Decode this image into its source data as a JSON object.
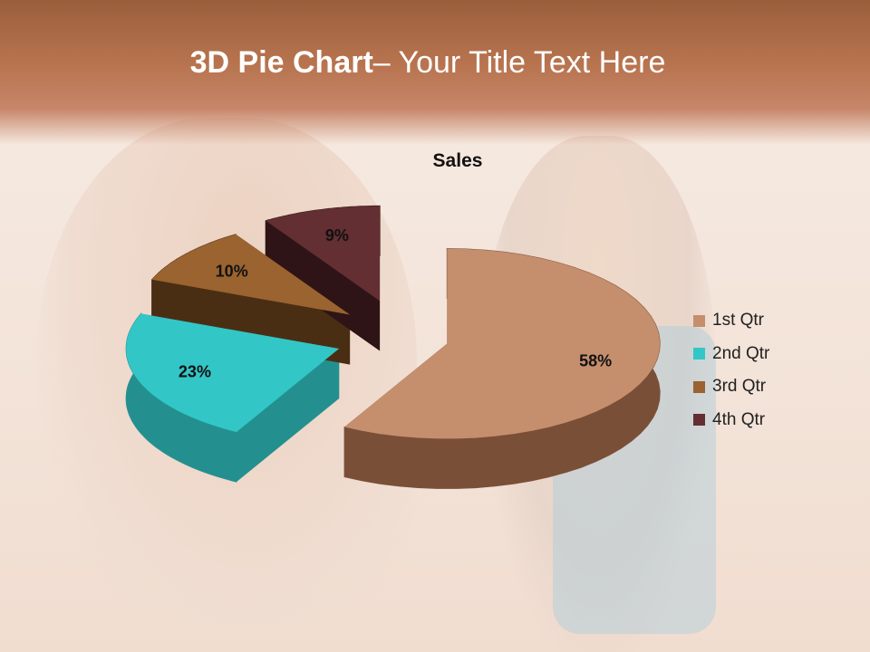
{
  "slide": {
    "title_bold": "3D Pie Chart",
    "title_rest": "– Your Title Text Here"
  },
  "chart_data": {
    "type": "pie",
    "title": "Sales",
    "three_d": true,
    "exploded": true,
    "legend_position": "right",
    "categories": [
      "1st Qtr",
      "2nd Qtr",
      "3rd Qtr",
      "4th Qtr"
    ],
    "values": [
      58,
      23,
      10,
      9
    ],
    "labels": [
      "58%",
      "23%",
      "10%",
      "9%"
    ],
    "colors": [
      "#C58E6D",
      "#33C6C6",
      "#9A632F",
      "#632F33"
    ],
    "side_colors": [
      "#7a4f38",
      "#23908f",
      "#4a2e14",
      "#2e1416"
    ]
  }
}
